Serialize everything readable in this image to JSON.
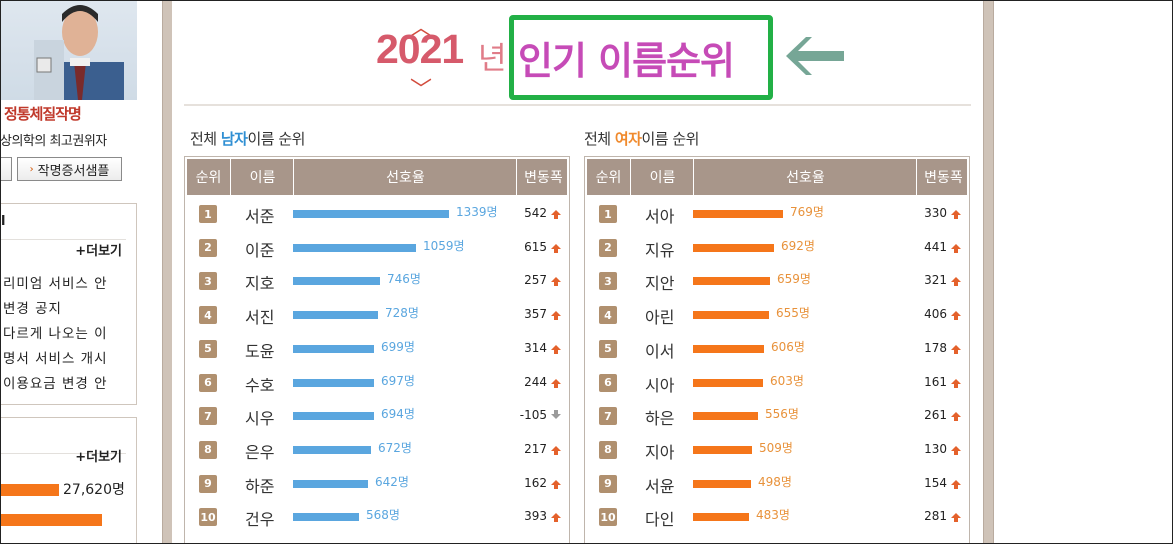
{
  "sidebar": {
    "slogan": "정통체질작명",
    "subtitle": "상의학의 최고권위자",
    "buttons": [
      "",
      "작명증서샘플"
    ],
    "notice_box": {
      "more": "+더보기",
      "items": [
        "리미엄 서비스 안",
        "변경 공지",
        "다르게 나오는 이",
        "명서 서비스 개시",
        "이용요금 변경 안"
      ]
    },
    "stats_box": {
      "more": "+더보기",
      "rows": [
        {
          "count": "27,620명",
          "fraction": 0.4
        },
        {
          "count": "",
          "fraction": 0.72
        }
      ]
    }
  },
  "title": {
    "year": "2021",
    "nyeon": "년",
    "main": "인기 이름순위"
  },
  "male": {
    "title_prefix": "전체 ",
    "title_accent": "남자",
    "title_suffix": "이름 순위",
    "headers": [
      "순위",
      "이름",
      "선호율",
      "변동폭"
    ],
    "rows": [
      {
        "rank": "1",
        "name": "서준",
        "count": "1339명",
        "value": 1339,
        "change": "542",
        "trend": "up"
      },
      {
        "rank": "2",
        "name": "이준",
        "count": "1059명",
        "value": 1059,
        "change": "615",
        "trend": "up"
      },
      {
        "rank": "3",
        "name": "지호",
        "count": "746명",
        "value": 746,
        "change": "257",
        "trend": "up"
      },
      {
        "rank": "4",
        "name": "서진",
        "count": "728명",
        "value": 728,
        "change": "357",
        "trend": "up"
      },
      {
        "rank": "5",
        "name": "도윤",
        "count": "699명",
        "value": 699,
        "change": "314",
        "trend": "up"
      },
      {
        "rank": "6",
        "name": "수호",
        "count": "697명",
        "value": 697,
        "change": "244",
        "trend": "up"
      },
      {
        "rank": "7",
        "name": "시우",
        "count": "694명",
        "value": 694,
        "change": "-105",
        "trend": "down"
      },
      {
        "rank": "8",
        "name": "은우",
        "count": "672명",
        "value": 672,
        "change": "217",
        "trend": "up"
      },
      {
        "rank": "9",
        "name": "하준",
        "count": "642명",
        "value": 642,
        "change": "162",
        "trend": "up"
      },
      {
        "rank": "10",
        "name": "건우",
        "count": "568명",
        "value": 568,
        "change": "393",
        "trend": "up"
      }
    ]
  },
  "female": {
    "title_prefix": "전체 ",
    "title_accent": "여자",
    "title_suffix": "이름 순위",
    "headers": [
      "순위",
      "이름",
      "선호율",
      "변동폭"
    ],
    "rows": [
      {
        "rank": "1",
        "name": "서아",
        "count": "769명",
        "value": 769,
        "change": "330",
        "trend": "up"
      },
      {
        "rank": "2",
        "name": "지유",
        "count": "692명",
        "value": 692,
        "change": "441",
        "trend": "up"
      },
      {
        "rank": "3",
        "name": "지안",
        "count": "659명",
        "value": 659,
        "change": "321",
        "trend": "up"
      },
      {
        "rank": "4",
        "name": "아린",
        "count": "655명",
        "value": 655,
        "change": "406",
        "trend": "up"
      },
      {
        "rank": "5",
        "name": "이서",
        "count": "606명",
        "value": 606,
        "change": "178",
        "trend": "up"
      },
      {
        "rank": "6",
        "name": "시아",
        "count": "603명",
        "value": 603,
        "change": "161",
        "trend": "up"
      },
      {
        "rank": "7",
        "name": "하은",
        "count": "556명",
        "value": 556,
        "change": "261",
        "trend": "up"
      },
      {
        "rank": "8",
        "name": "지아",
        "count": "509명",
        "value": 509,
        "change": "130",
        "trend": "up"
      },
      {
        "rank": "9",
        "name": "서윤",
        "count": "498명",
        "value": 498,
        "change": "154",
        "trend": "up"
      },
      {
        "rank": "10",
        "name": "다인",
        "count": "483명",
        "value": 483,
        "change": "281",
        "trend": "up"
      }
    ]
  },
  "colors": {
    "male_bar": "#5aa6df",
    "female_bar": "#f5761a",
    "header_bg": "#a8968a",
    "highlight_box": "#22b046",
    "pointer_arrow": "#76a696"
  }
}
